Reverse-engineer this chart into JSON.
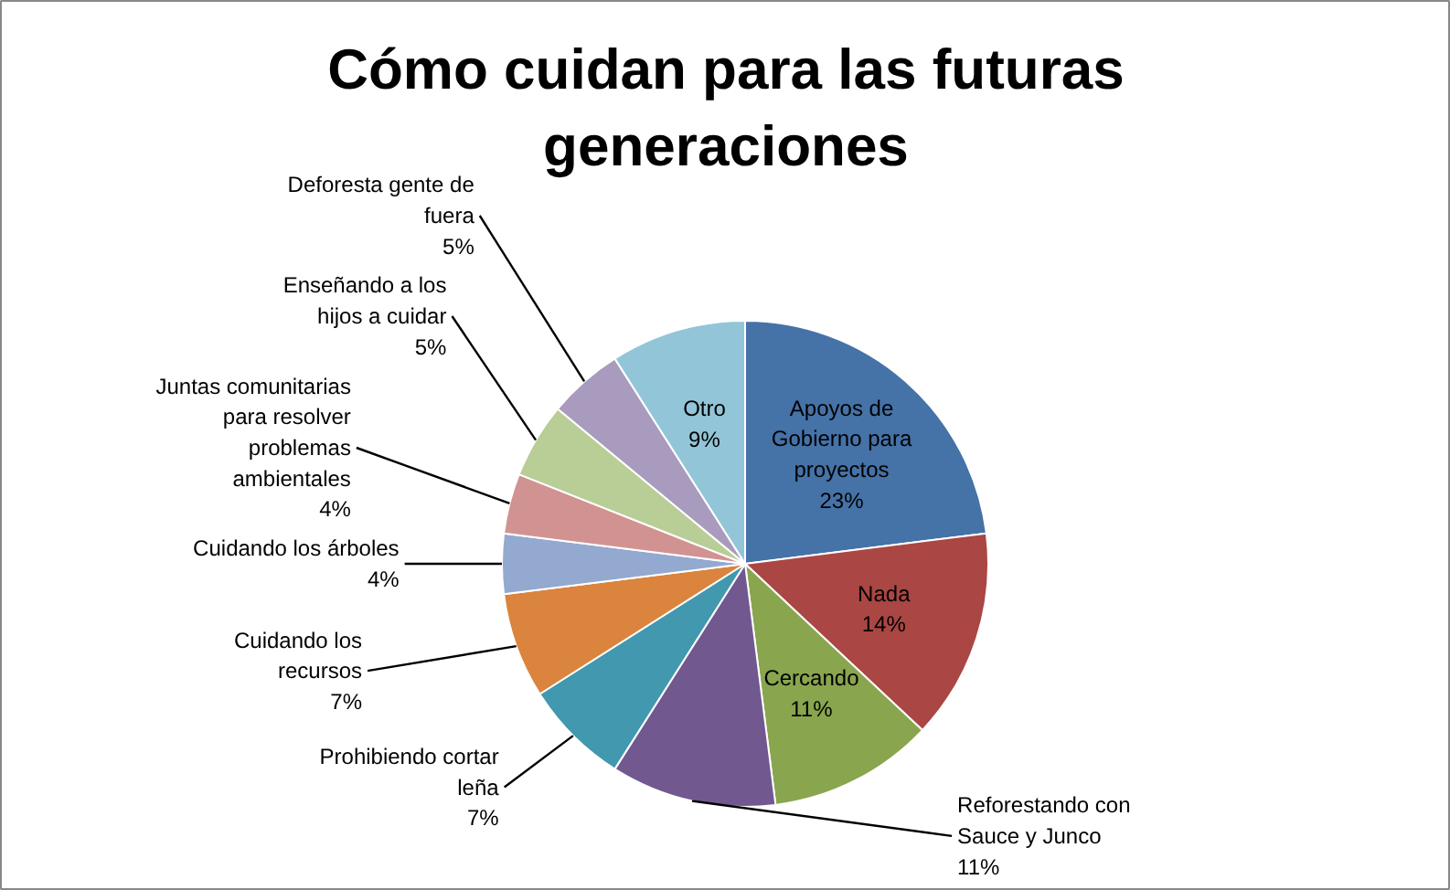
{
  "chart_data": {
    "type": "pie",
    "title": "Cómo cuidan para las futuras generaciones",
    "categories": [
      "Apoyos de Gobierno para proyectos",
      "Nada",
      "Cercando",
      "Reforestando con Sauce y Junco",
      "Prohibiendo cortar leña",
      "Cuidando los recursos",
      "Cuidando los árboles",
      "Juntas comunitarias para resolver problemas ambientales",
      "Enseñando a los hijos a cuidar",
      "Deforesta gente de fuera",
      "Otro"
    ],
    "values": [
      23,
      14,
      11,
      11,
      7,
      7,
      4,
      4,
      5,
      5,
      9
    ],
    "colors": [
      "#4572a7",
      "#aa4643",
      "#89a54e",
      "#71588f",
      "#4198af",
      "#db843d",
      "#93a9cf",
      "#d19392",
      "#b9cd96",
      "#a99bbd",
      "#92c5d8"
    ],
    "data_labels": true,
    "value_labels": [
      "23%",
      "14%",
      "11%",
      "11%",
      "7%",
      "7%",
      "4%",
      "4%",
      "5%",
      "5%",
      "9%"
    ]
  }
}
